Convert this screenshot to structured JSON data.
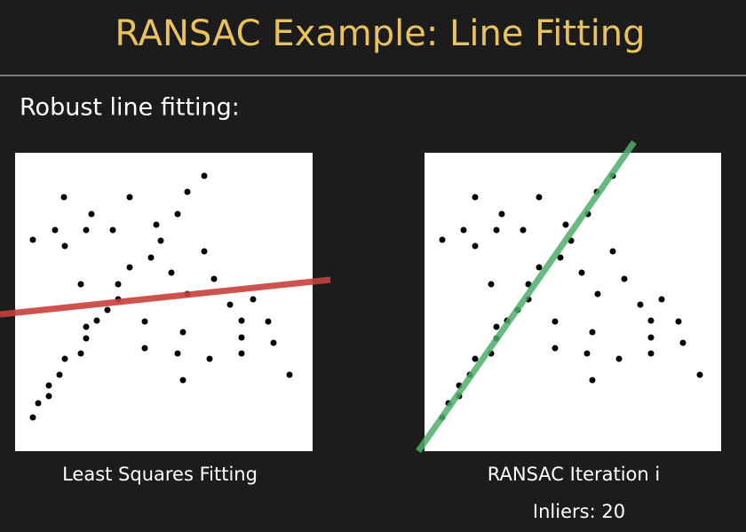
{
  "header": {
    "title": "RANSAC Example: Line Fitting"
  },
  "subtitle": "Robust line fitting:",
  "panels": [
    {
      "caption": "Least Squares Fitting"
    },
    {
      "caption": "RANSAC Iteration i",
      "note": "Inliers: 20"
    }
  ]
}
